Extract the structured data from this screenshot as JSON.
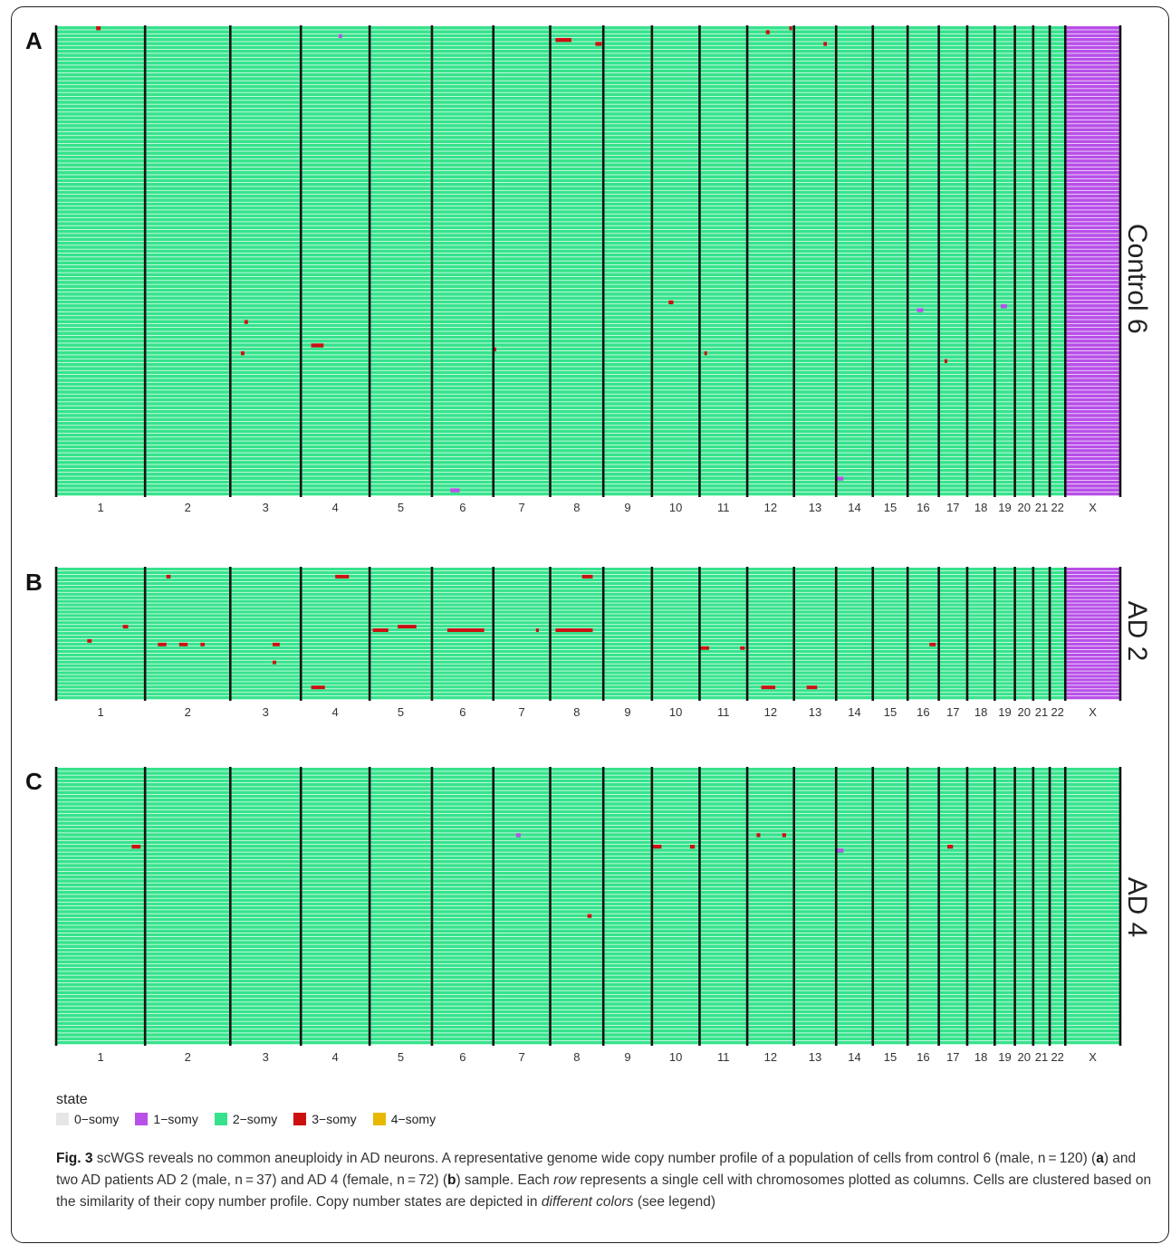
{
  "chromosomes": [
    "1",
    "2",
    "3",
    "4",
    "5",
    "6",
    "7",
    "8",
    "9",
    "10",
    "11",
    "12",
    "13",
    "14",
    "15",
    "16",
    "17",
    "18",
    "19",
    "20",
    "21",
    "22",
    "X"
  ],
  "chrom_widths": [
    97,
    93,
    77,
    75,
    68,
    67,
    62,
    58,
    53,
    52,
    52,
    51,
    46,
    40,
    38,
    34,
    31,
    30,
    22,
    20,
    18,
    17,
    60
  ],
  "colors": {
    "0-somy": "#e6e6e6",
    "1-somy": "#b84fe8",
    "2-somy": "#36e38c",
    "3-somy": "#cc1010",
    "4-somy": "#e8b800",
    "row_gap": "#ffffff",
    "divider": "#111111"
  },
  "panels": [
    {
      "letter": "A",
      "label": "Control 6",
      "n_cells": 120,
      "x_state": "1-somy",
      "events": [
        {
          "chrom": "1",
          "frac": 0.45,
          "cell": 1,
          "len": 0.05,
          "state": "3-somy"
        },
        {
          "chrom": "4",
          "frac": 0.55,
          "cell": 3,
          "len": 0.05,
          "state": "1-somy"
        },
        {
          "chrom": "8",
          "frac": 0.1,
          "cell": 4,
          "len": 0.3,
          "state": "3-somy"
        },
        {
          "chrom": "8",
          "frac": 0.85,
          "cell": 5,
          "len": 0.12,
          "state": "3-somy"
        },
        {
          "chrom": "12",
          "frac": 0.4,
          "cell": 2,
          "len": 0.08,
          "state": "3-somy"
        },
        {
          "chrom": "12",
          "frac": 0.9,
          "cell": 1,
          "len": 0.06,
          "state": "3-somy"
        },
        {
          "chrom": "13",
          "frac": 0.7,
          "cell": 5,
          "len": 0.08,
          "state": "3-somy"
        },
        {
          "chrom": "10",
          "frac": 0.35,
          "cell": 71,
          "len": 0.1,
          "state": "3-somy"
        },
        {
          "chrom": "16",
          "frac": 0.3,
          "cell": 73,
          "len": 0.2,
          "state": "1-somy"
        },
        {
          "chrom": "19",
          "frac": 0.3,
          "cell": 72,
          "len": 0.3,
          "state": "1-somy"
        },
        {
          "chrom": "3",
          "frac": 0.2,
          "cell": 76,
          "len": 0.05,
          "state": "3-somy"
        },
        {
          "chrom": "4",
          "frac": 0.15,
          "cell": 82,
          "len": 0.18,
          "state": "3-somy"
        },
        {
          "chrom": "7",
          "frac": 0.0,
          "cell": 83,
          "len": 0.05,
          "state": "3-somy"
        },
        {
          "chrom": "3",
          "frac": 0.15,
          "cell": 84,
          "len": 0.05,
          "state": "3-somy"
        },
        {
          "chrom": "11",
          "frac": 0.1,
          "cell": 84,
          "len": 0.05,
          "state": "3-somy"
        },
        {
          "chrom": "17",
          "frac": 0.2,
          "cell": 86,
          "len": 0.1,
          "state": "3-somy"
        },
        {
          "chrom": "14",
          "frac": 0.0,
          "cell": 116,
          "len": 0.2,
          "state": "1-somy"
        },
        {
          "chrom": "6",
          "frac": 0.3,
          "cell": 119,
          "len": 0.15,
          "state": "1-somy"
        }
      ]
    },
    {
      "letter": "B",
      "label": "AD 2",
      "n_cells": 37,
      "x_state": "1-somy",
      "events": [
        {
          "chrom": "4",
          "frac": 0.5,
          "cell": 3,
          "len": 0.2,
          "state": "3-somy"
        },
        {
          "chrom": "8",
          "frac": 0.6,
          "cell": 3,
          "len": 0.2,
          "state": "3-somy"
        },
        {
          "chrom": "2",
          "frac": 0.25,
          "cell": 3,
          "len": 0.05,
          "state": "3-somy"
        },
        {
          "chrom": "1",
          "frac": 0.75,
          "cell": 17,
          "len": 0.06,
          "state": "3-somy"
        },
        {
          "chrom": "5",
          "frac": 0.05,
          "cell": 18,
          "len": 0.25,
          "state": "3-somy"
        },
        {
          "chrom": "5",
          "frac": 0.45,
          "cell": 17,
          "len": 0.3,
          "state": "3-somy"
        },
        {
          "chrom": "6",
          "frac": 0.25,
          "cell": 18,
          "len": 0.6,
          "state": "3-somy"
        },
        {
          "chrom": "8",
          "frac": 0.1,
          "cell": 18,
          "len": 0.7,
          "state": "3-somy"
        },
        {
          "chrom": "7",
          "frac": 0.75,
          "cell": 18,
          "len": 0.05,
          "state": "3-somy"
        },
        {
          "chrom": "1",
          "frac": 0.35,
          "cell": 21,
          "len": 0.05,
          "state": "3-somy"
        },
        {
          "chrom": "2",
          "frac": 0.15,
          "cell": 22,
          "len": 0.1,
          "state": "3-somy"
        },
        {
          "chrom": "2",
          "frac": 0.4,
          "cell": 22,
          "len": 0.1,
          "state": "3-somy"
        },
        {
          "chrom": "2",
          "frac": 0.65,
          "cell": 22,
          "len": 0.05,
          "state": "3-somy"
        },
        {
          "chrom": "3",
          "frac": 0.6,
          "cell": 22,
          "len": 0.1,
          "state": "3-somy"
        },
        {
          "chrom": "11",
          "frac": 0.0,
          "cell": 23,
          "len": 0.2,
          "state": "3-somy"
        },
        {
          "chrom": "11",
          "frac": 0.85,
          "cell": 23,
          "len": 0.1,
          "state": "3-somy"
        },
        {
          "chrom": "16",
          "frac": 0.7,
          "cell": 22,
          "len": 0.2,
          "state": "3-somy"
        },
        {
          "chrom": "3",
          "frac": 0.6,
          "cell": 27,
          "len": 0.05,
          "state": "3-somy"
        },
        {
          "chrom": "4",
          "frac": 0.15,
          "cell": 34,
          "len": 0.2,
          "state": "3-somy"
        },
        {
          "chrom": "12",
          "frac": 0.3,
          "cell": 34,
          "len": 0.3,
          "state": "3-somy"
        },
        {
          "chrom": "13",
          "frac": 0.3,
          "cell": 34,
          "len": 0.25,
          "state": "3-somy"
        }
      ]
    },
    {
      "letter": "C",
      "label": "AD 4",
      "n_cells": 72,
      "x_state": "2-somy",
      "events": [
        {
          "chrom": "1",
          "frac": 0.85,
          "cell": 21,
          "len": 0.1,
          "state": "3-somy"
        },
        {
          "chrom": "10",
          "frac": 0.0,
          "cell": 21,
          "len": 0.2,
          "state": "3-somy"
        },
        {
          "chrom": "10",
          "frac": 0.8,
          "cell": 21,
          "len": 0.1,
          "state": "3-somy"
        },
        {
          "chrom": "14",
          "frac": 0.0,
          "cell": 22,
          "len": 0.2,
          "state": "1-somy"
        },
        {
          "chrom": "17",
          "frac": 0.3,
          "cell": 21,
          "len": 0.2,
          "state": "3-somy"
        },
        {
          "chrom": "12",
          "frac": 0.2,
          "cell": 18,
          "len": 0.08,
          "state": "3-somy"
        },
        {
          "chrom": "12",
          "frac": 0.75,
          "cell": 18,
          "len": 0.08,
          "state": "3-somy"
        },
        {
          "chrom": "7",
          "frac": 0.4,
          "cell": 18,
          "len": 0.08,
          "state": "1-somy"
        },
        {
          "chrom": "8",
          "frac": 0.7,
          "cell": 39,
          "len": 0.08,
          "state": "3-somy"
        }
      ]
    }
  ],
  "legend": {
    "title": "state",
    "items": [
      {
        "label": "0−somy",
        "key": "0-somy"
      },
      {
        "label": "1−somy",
        "key": "1-somy"
      },
      {
        "label": "2−somy",
        "key": "2-somy"
      },
      {
        "label": "3−somy",
        "key": "3-somy"
      },
      {
        "label": "4−somy",
        "key": "4-somy"
      }
    ]
  },
  "caption": {
    "fig_label": "Fig. 3",
    "title": " scWGS reveals no common aneuploidy in AD neurons. A representative genome wide copy number profile of a population of cells from control 6 (male, n = 120) (",
    "a": "a",
    "mid1": ") and two AD patients AD 2 (male, n = 37) and AD 4 (female, n = 72) (",
    "b": "b",
    "mid2": ") sample. Each ",
    "row": "row",
    "mid3": " represents a single cell with chromosomes plotted as columns. Cells are clustered based on the similarity of their copy number profile. Copy number states are depicted in ",
    "different_colors": "different colors",
    "end": " (see legend)"
  }
}
